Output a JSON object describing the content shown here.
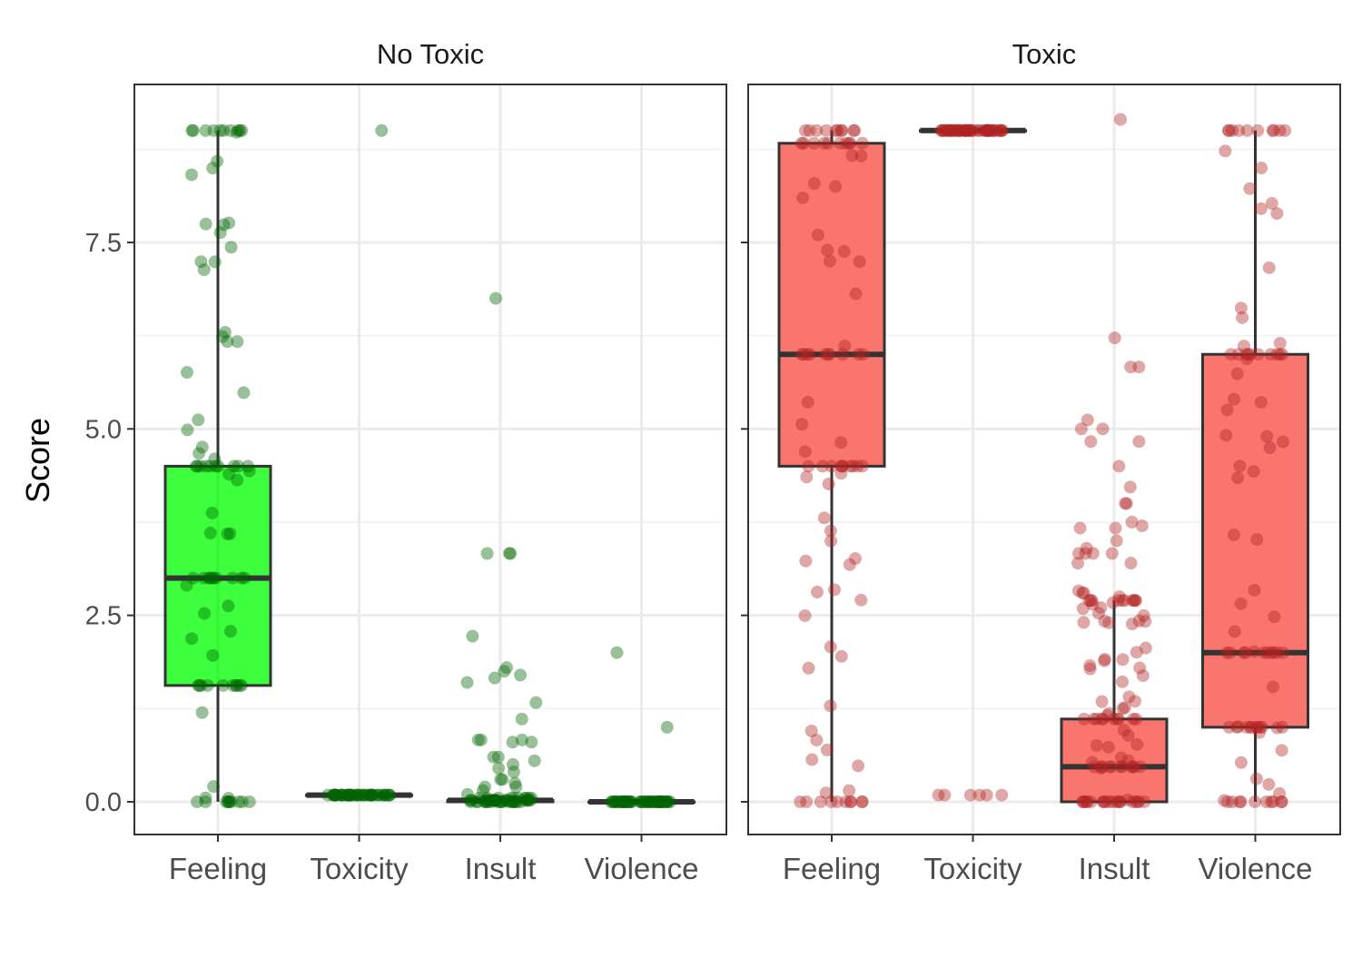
{
  "chart_data": {
    "type": "box",
    "ylabel": "Score",
    "ylim": [
      -0.45,
      9.5
    ],
    "yticks": [
      0.0,
      2.5,
      5.0,
      7.5
    ],
    "ytick_labels": [
      "0.0",
      "2.5",
      "5.0",
      "7.5"
    ],
    "categories": [
      "Feeling",
      "Toxicity",
      "Insult",
      "Violence"
    ],
    "grid": true,
    "facets": [
      {
        "title": "No Toxic",
        "fill_color": "#33ff33",
        "point_color": "#006400",
        "boxes": [
          {
            "category": "Feeling",
            "min": 0,
            "q1": 1.56,
            "median": 3.0,
            "q3": 4.5,
            "max": 9.0
          },
          {
            "category": "Toxicity",
            "min": 0.09,
            "q1": 0.09,
            "median": 0.09,
            "q3": 0.09,
            "max": 0.09
          },
          {
            "category": "Insult",
            "min": 0,
            "q1": 0,
            "median": 0.02,
            "q3": 0.02,
            "max": 0.05
          },
          {
            "category": "Violence",
            "min": 0,
            "q1": 0,
            "median": 0.0,
            "q3": 0.0,
            "max": 0.0
          }
        ],
        "outliers": [
          {
            "category": "Toxicity",
            "values": [
              9.0
            ]
          },
          {
            "category": "Insult",
            "values": [
              6.75,
              3.33,
              3.33,
              3.33,
              2.22,
              1.8,
              1.75,
              1.7,
              1.66,
              1.6,
              1.33,
              1.11,
              0.83,
              0.83,
              0.83,
              0.8,
              0.8,
              0.6,
              0.6,
              0.55,
              0.5,
              0.45,
              0.4,
              0.3,
              0.3,
              0.25,
              0.2,
              0.2,
              0.15,
              0.1
            ]
          },
          {
            "category": "Violence",
            "values": [
              2.0,
              1.0
            ]
          }
        ]
      },
      {
        "title": "Toxic",
        "fill_color": "#f8766d",
        "point_color": "#b22222",
        "boxes": [
          {
            "category": "Feeling",
            "min": 0,
            "q1": 4.5,
            "median": 6.0,
            "q3": 8.83,
            "max": 9.0
          },
          {
            "category": "Toxicity",
            "min": 9.0,
            "q1": 9.0,
            "median": 9.0,
            "q3": 9.0,
            "max": 9.0
          },
          {
            "category": "Insult",
            "min": 0,
            "q1": 0,
            "median": 0.47,
            "q3": 1.11,
            "max": 2.7
          },
          {
            "category": "Violence",
            "min": 0,
            "q1": 1.0,
            "median": 2.0,
            "q3": 6.0,
            "max": 9.0
          }
        ],
        "outliers": [
          {
            "category": "Toxicity",
            "values": [
              0.09,
              0.09,
              0.09,
              0.09,
              0.09,
              0.09
            ]
          },
          {
            "category": "Insult",
            "values": [
              9.15,
              6.22,
              5.83,
              5.83,
              5.12,
              5.0,
              5.0,
              4.83,
              4.83,
              4.5,
              4.22,
              4.0,
              4.0,
              3.75,
              3.7,
              3.67,
              3.67,
              3.5,
              3.4,
              3.33,
              3.33,
              3.33,
              3.33,
              3.2,
              3.2,
              2.83,
              2.8,
              2.8,
              2.75
            ]
          }
        ]
      }
    ]
  }
}
